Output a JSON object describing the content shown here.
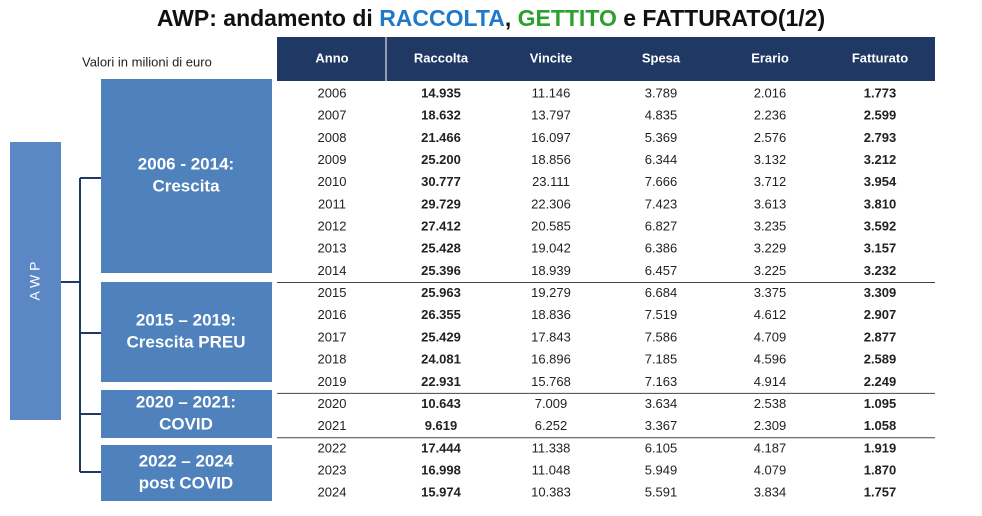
{
  "title": [
    "AWP: andamento di ",
    "RACCOLTA",
    ", ",
    "GETTITO",
    " e FATTURATO(1/2)"
  ],
  "note": "Valori in milioni di euro",
  "side_label": "A W P",
  "groups": [
    {
      "lines": [
        "2006 - 2014:",
        "Crescita"
      ]
    },
    {
      "lines": [
        "2015 – 2019:",
        "Crescita PREU"
      ]
    },
    {
      "lines": [
        "2020 – 2021:",
        "COVID"
      ]
    },
    {
      "lines": [
        "2022 – 2024",
        "post COVID"
      ]
    }
  ],
  "table": {
    "header": [
      "Anno",
      "Raccolta",
      "Vincite",
      "Spesa",
      "Erario",
      "Fatturato"
    ],
    "rows": [
      [
        "2006",
        "14.935",
        "11.146",
        "3.789",
        "2.016",
        "1.773"
      ],
      [
        "2007",
        "18.632",
        "13.797",
        "4.835",
        "2.236",
        "2.599"
      ],
      [
        "2008",
        "21.466",
        "16.097",
        "5.369",
        "2.576",
        "2.793"
      ],
      [
        "2009",
        "25.200",
        "18.856",
        "6.344",
        "3.132",
        "3.212"
      ],
      [
        "2010",
        "30.777",
        "23.111",
        "7.666",
        "3.712",
        "3.954"
      ],
      [
        "2011",
        "29.729",
        "22.306",
        "7.423",
        "3.613",
        "3.810"
      ],
      [
        "2012",
        "27.412",
        "20.585",
        "6.827",
        "3.235",
        "3.592"
      ],
      [
        "2013",
        "25.428",
        "19.042",
        "6.386",
        "3.229",
        "3.157"
      ],
      [
        "2014",
        "25.396",
        "18.939",
        "6.457",
        "3.225",
        "3.232"
      ],
      [
        "2015",
        "25.963",
        "19.279",
        "6.684",
        "3.375",
        "3.309"
      ],
      [
        "2016",
        "26.355",
        "18.836",
        "7.519",
        "4.612",
        "2.907"
      ],
      [
        "2017",
        "25.429",
        "17.843",
        "7.586",
        "4.709",
        "2.877"
      ],
      [
        "2018",
        "24.081",
        "16.896",
        "7.185",
        "4.596",
        "2.589"
      ],
      [
        "2019",
        "22.931",
        "15.768",
        "7.163",
        "4.914",
        "2.249"
      ],
      [
        "2020",
        "10.643",
        "7.009",
        "3.634",
        "2.538",
        "1.095"
      ],
      [
        "2021",
        "9.619",
        "6.252",
        "3.367",
        "2.309",
        "1.058"
      ],
      [
        "2022",
        "17.444",
        "11.338",
        "6.105",
        "4.187",
        "1.919"
      ],
      [
        "2023",
        "16.998",
        "11.048",
        "5.949",
        "4.079",
        "1.870"
      ],
      [
        "2024",
        "15.974",
        "10.383",
        "5.591",
        "3.834",
        "1.757"
      ]
    ]
  }
}
